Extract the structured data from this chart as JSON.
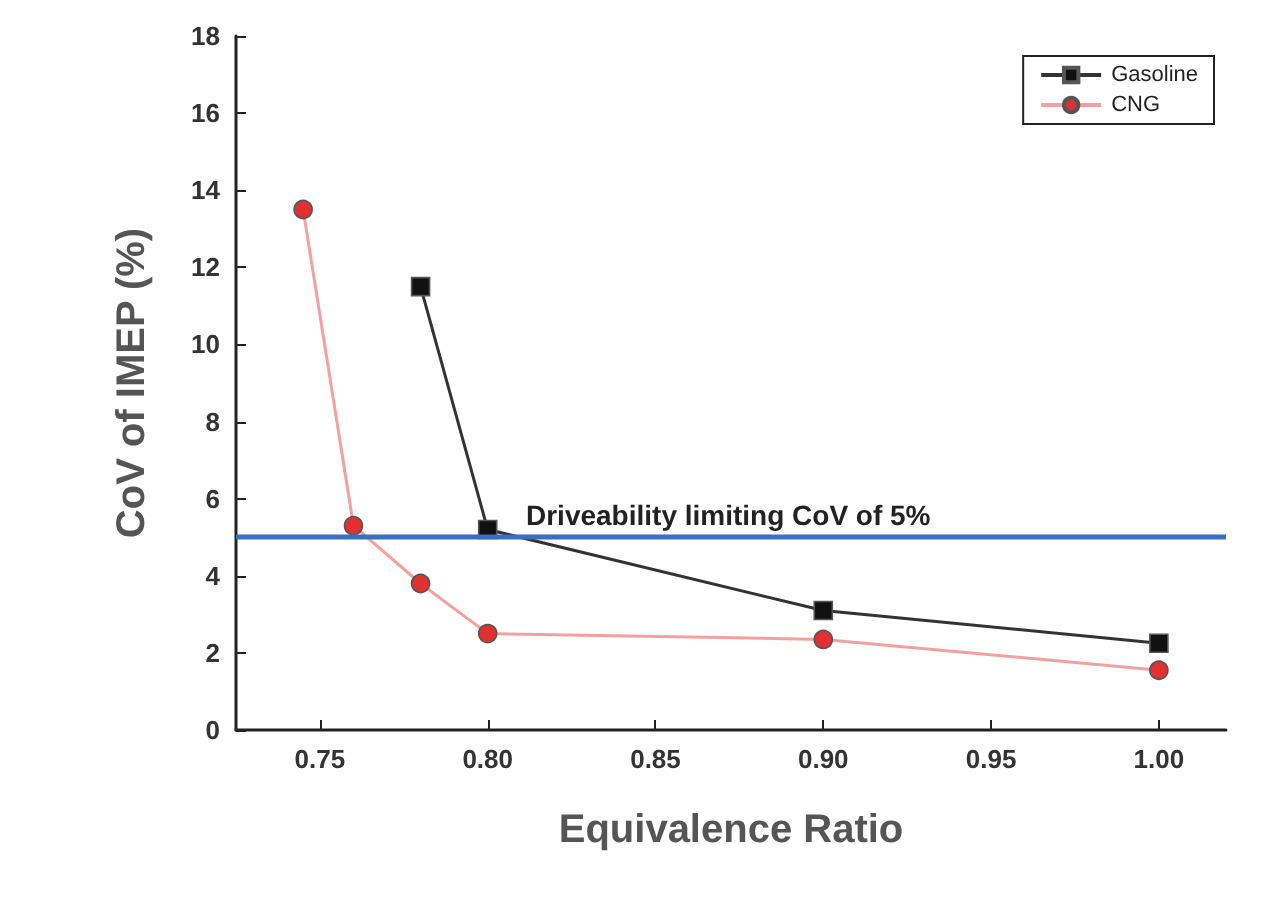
{
  "chart_data": {
    "type": "line",
    "xlabel": "Equivalence Ratio",
    "ylabel": "CoV of IMEP (%)",
    "xlim": [
      0.725,
      1.02
    ],
    "xticks": [
      {
        "value": 0.75,
        "label": "0.75"
      },
      {
        "value": 0.8,
        "label": "0.80"
      },
      {
        "value": 0.85,
        "label": "0.85"
      },
      {
        "value": 0.9,
        "label": "0.90"
      },
      {
        "value": 0.95,
        "label": "0.95"
      },
      {
        "value": 1.0,
        "label": "1.00"
      }
    ],
    "ylim": [
      0,
      18
    ],
    "yticks": [
      0,
      2,
      4,
      6,
      8,
      10,
      12,
      14,
      16,
      18
    ],
    "series": [
      {
        "name": "Gasoline",
        "color": "#333333",
        "marker": "square",
        "x": [
          0.78,
          0.8,
          0.9,
          1.0
        ],
        "values": [
          11.5,
          5.2,
          3.1,
          2.25
        ]
      },
      {
        "name": "CNG",
        "color": "#f4a0a0",
        "marker": "circle",
        "x": [
          0.745,
          0.76,
          0.78,
          0.8,
          0.9,
          1.0
        ],
        "values": [
          13.5,
          5.3,
          3.8,
          2.5,
          2.35,
          1.55
        ]
      }
    ],
    "ref_lines": [
      {
        "axis": "y",
        "value": 5,
        "label": "Driveability limiting CoV of 5%",
        "color": "#3a6ec0"
      }
    ],
    "legend": "top right",
    "grid": false
  }
}
